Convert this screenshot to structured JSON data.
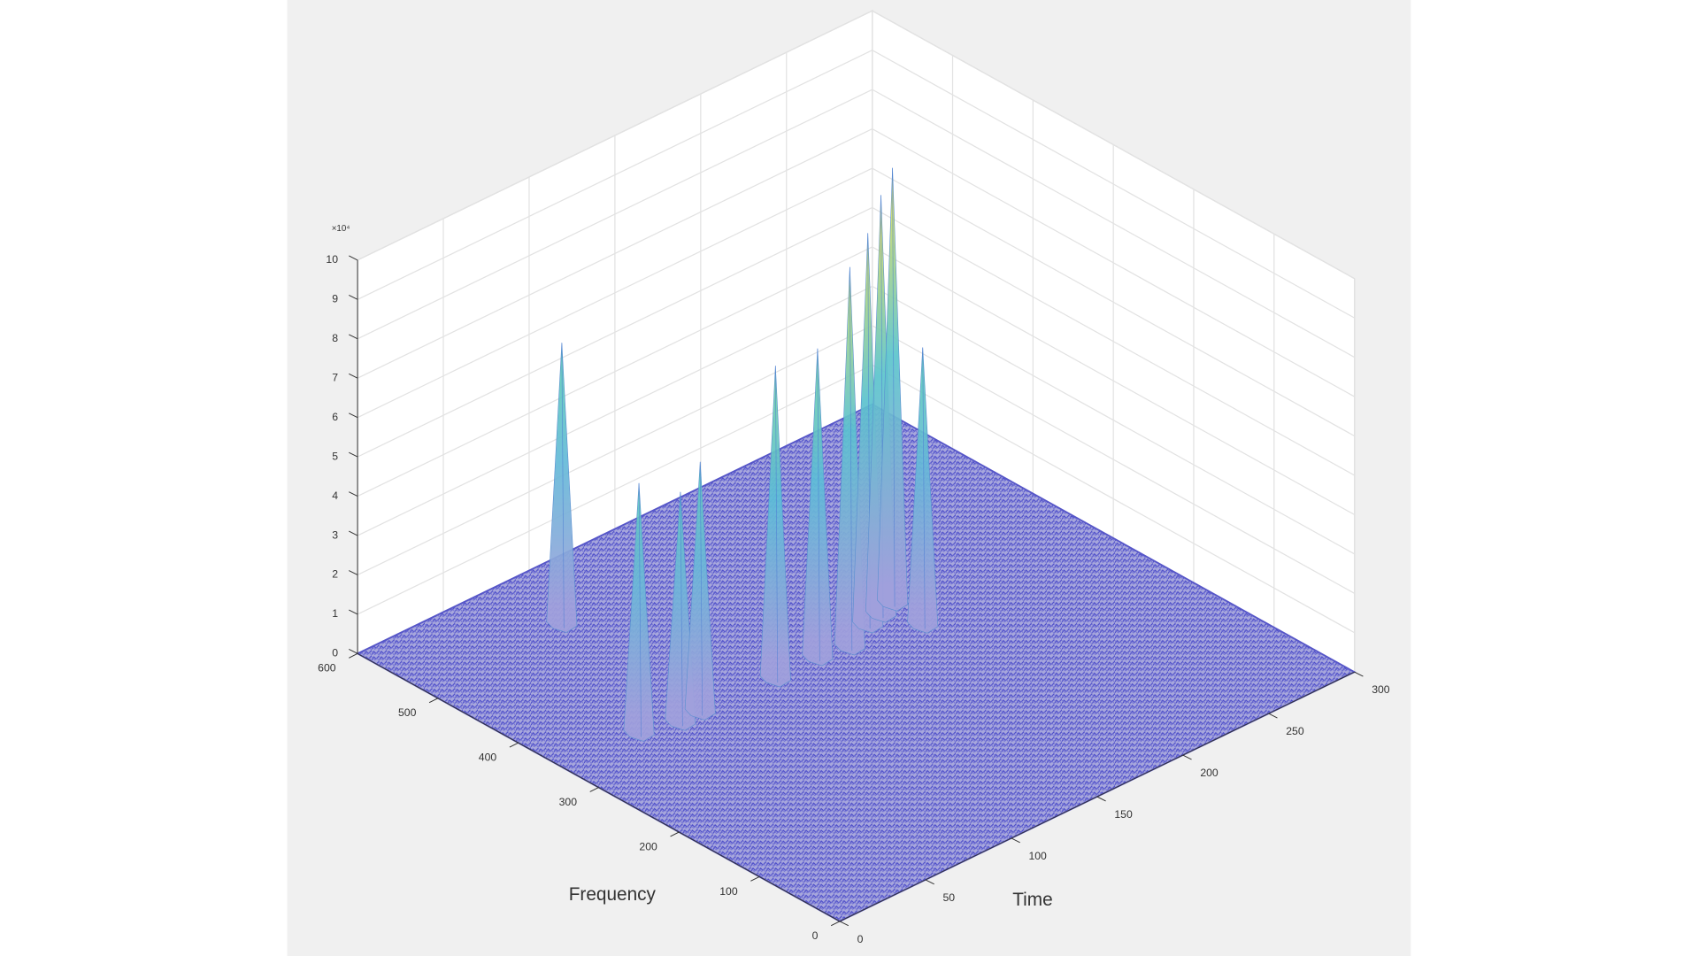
{
  "chart_data": {
    "type": "surface",
    "xlabel": "Frequency",
    "ylabel": "Time",
    "zmultiplier": "×10⁴",
    "xlim": [
      0,
      600
    ],
    "xticks": [
      0,
      100,
      200,
      300,
      400,
      500,
      600
    ],
    "ylim": [
      0,
      300
    ],
    "yticks": [
      0,
      50,
      100,
      150,
      200,
      250,
      300
    ],
    "zlim": [
      0,
      10
    ],
    "zticks": [
      0,
      1,
      2,
      3,
      4,
      5,
      6,
      7,
      8,
      9,
      10
    ],
    "grid": true,
    "peaks": {
      "x": [
        538,
        363,
        352,
        353,
        349,
        350,
        344,
        360,
        365,
        372,
        328
      ],
      "y": [
        90,
        53,
        72,
        84,
        126,
        151,
        167,
        185,
        195,
        205,
        202
      ],
      "values": [
        6.7,
        5.9,
        5.4,
        5.9,
        7.5,
        7.4,
        9.2,
        9.5,
        10.2,
        10.6,
        6.6
      ]
    }
  }
}
